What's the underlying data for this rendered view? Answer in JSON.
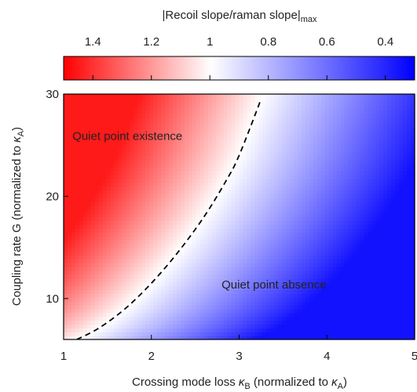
{
  "chart_data": {
    "type": "heatmap",
    "colorbar": {
      "title_main": "|Recoil slope/raman slope|",
      "title_sub": "max",
      "ticks": [
        {
          "value": 1.4,
          "label": "1.4"
        },
        {
          "value": 1.2,
          "label": "1.2"
        },
        {
          "value": 1.0,
          "label": "1"
        },
        {
          "value": 0.8,
          "label": "0.8"
        },
        {
          "value": 0.6,
          "label": "0.6"
        },
        {
          "value": 0.4,
          "label": "0.4"
        }
      ],
      "range": [
        1.5,
        0.3
      ],
      "colors": {
        "high": "#ff0000",
        "mid": "#ffffff",
        "low": "#0000ff"
      }
    },
    "xaxis": {
      "label_main": "Crossing mode loss ",
      "label_kappa": "κ",
      "label_sub": "B",
      "label_mid": " (normalized to ",
      "label_kappa2": "κ",
      "label_sub2": "A",
      "label_end": ")",
      "range": [
        1,
        5
      ],
      "ticks": [
        {
          "value": 1,
          "label": "1"
        },
        {
          "value": 2,
          "label": "2"
        },
        {
          "value": 3,
          "label": "3"
        },
        {
          "value": 4,
          "label": "4"
        },
        {
          "value": 5,
          "label": "5"
        }
      ]
    },
    "yaxis": {
      "label_main": "Coupling rate G (normalized to ",
      "label_kappa": "κ",
      "label_sub": "A",
      "label_end": ")",
      "range": [
        6,
        30
      ],
      "ticks": [
        {
          "value": 10,
          "label": "10"
        },
        {
          "value": 20,
          "label": "20"
        },
        {
          "value": 30,
          "label": "30"
        }
      ]
    },
    "boundary_curve": {
      "style": "dashed",
      "x": [
        1.15,
        1.4,
        1.7,
        2.0,
        2.3,
        2.6,
        2.85,
        3.0,
        3.25
      ],
      "y": [
        6,
        7.1,
        9.0,
        11.5,
        14.5,
        18.0,
        21.5,
        24.0,
        29.5
      ]
    },
    "annotations": [
      {
        "text": "Quiet point existence",
        "x": 1.1,
        "y": 25.5
      },
      {
        "text": "Quiet point absence",
        "x": 2.8,
        "y": 11.0
      }
    ]
  }
}
